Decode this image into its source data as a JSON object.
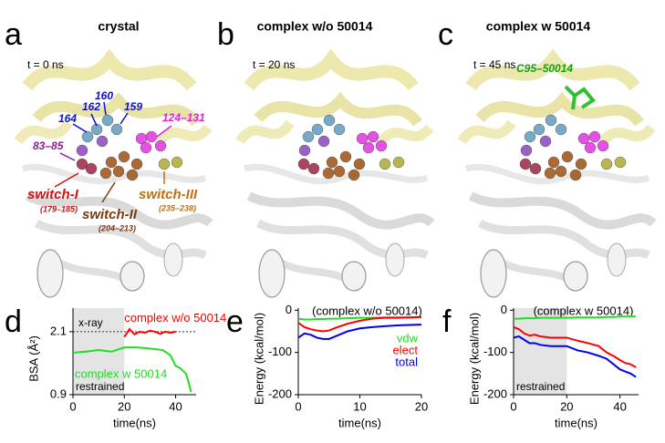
{
  "panels": [
    {
      "letter": "a",
      "title": "crystal",
      "time": "t = 0 ns",
      "labels": [
        "162",
        "160",
        "159",
        "164",
        "124–131",
        "83–85",
        "switch-I",
        "(179–185)",
        "switch-II",
        "(204–213)",
        "switch-III",
        "(235–238)"
      ]
    },
    {
      "letter": "b",
      "title": "complex w/o 50014",
      "time": "t = 20 ns",
      "labels": []
    },
    {
      "letter": "c",
      "title": "complex w 50014",
      "time": "t = 45 ns",
      "labels": [
        "C95–50014"
      ]
    }
  ],
  "chart_data": [
    {
      "type": "line",
      "letter": "d",
      "xlabel": "time(ns)",
      "ylabel": "BSA (Å²)",
      "xlim": [
        0,
        48
      ],
      "xticks": [
        0,
        20,
        40
      ],
      "ylim": [
        0.9,
        2.55
      ],
      "yticks": [
        0.9,
        2.1
      ],
      "shade": [
        0,
        20
      ],
      "shade_label": "restrained",
      "reference": 2.1,
      "reference_label": "x-ray",
      "legend": "inline",
      "series": [
        {
          "name": "complex w/o 50014",
          "color": "#ff0000",
          "x": [
            20,
            22,
            24,
            26,
            28,
            30,
            32,
            34,
            36,
            38,
            40
          ],
          "values": [
            2.0,
            2.15,
            2.05,
            2.1,
            2.08,
            2.12,
            2.1,
            2.06,
            2.1,
            2.08,
            2.1
          ]
        },
        {
          "name": "complex w 50014",
          "color": "#22dd22",
          "x": [
            0,
            5,
            10,
            15,
            20,
            25,
            30,
            35,
            38,
            40,
            42,
            44,
            45,
            46
          ],
          "values": [
            1.7,
            1.72,
            1.75,
            1.72,
            1.8,
            1.8,
            1.78,
            1.75,
            1.65,
            1.45,
            1.4,
            1.3,
            1.15,
            0.95
          ]
        }
      ]
    },
    {
      "type": "line",
      "letter": "e",
      "xlabel": "time(ns)",
      "ylabel": "Energy (kcal/mol)",
      "xlim": [
        0,
        20
      ],
      "xticks": [
        0,
        10,
        20
      ],
      "ylim": [
        -200,
        5
      ],
      "yticks": [
        -200,
        -100,
        0
      ],
      "annotation": "(complex w/o 50014)",
      "legend": "right",
      "series": [
        {
          "name": "vdw",
          "color": "#22dd22",
          "x": [
            0,
            1,
            2,
            3,
            4,
            5,
            6,
            8,
            10,
            12,
            14,
            16,
            18,
            20
          ],
          "values": [
            -20,
            -22,
            -22,
            -21,
            -21,
            -20,
            -20,
            -19,
            -18,
            -18,
            -17,
            -17,
            -17,
            -17
          ]
        },
        {
          "name": "elect",
          "color": "#ff0000",
          "x": [
            0,
            1,
            2,
            3,
            4,
            5,
            6,
            8,
            10,
            12,
            14,
            16,
            18,
            20
          ],
          "values": [
            -30,
            -40,
            -45,
            -48,
            -50,
            -48,
            -42,
            -32,
            -25,
            -20,
            -18,
            -18,
            -17,
            -16
          ]
        },
        {
          "name": "total",
          "color": "#0000ee",
          "x": [
            0,
            1,
            2,
            3,
            4,
            5,
            6,
            8,
            10,
            12,
            14,
            16,
            18,
            20
          ],
          "values": [
            -65,
            -55,
            -58,
            -65,
            -68,
            -68,
            -62,
            -50,
            -43,
            -40,
            -38,
            -36,
            -35,
            -34
          ]
        }
      ]
    },
    {
      "type": "line",
      "letter": "f",
      "xlabel": "time(ns)",
      "ylabel": "Energy (kcal/mol)",
      "xlim": [
        0,
        47
      ],
      "xticks": [
        0,
        20,
        40
      ],
      "ylim": [
        -200,
        5
      ],
      "yticks": [
        -200,
        -100,
        0
      ],
      "shade": [
        0,
        20
      ],
      "shade_label": "restrained",
      "annotation": "(complex w 50014)",
      "series": [
        {
          "color": "#22dd22",
          "x": [
            0,
            2,
            4,
            6,
            8,
            10,
            14,
            18,
            20,
            24,
            28,
            32,
            35,
            38,
            40,
            42,
            44,
            46
          ],
          "values": [
            -20,
            -20,
            -19,
            -19,
            -19,
            -18,
            -18,
            -18,
            -18,
            -17,
            -17,
            -17,
            -16,
            -16,
            -15,
            -15,
            -15,
            -15
          ]
        },
        {
          "color": "#ff0000",
          "x": [
            0,
            2,
            4,
            6,
            8,
            10,
            14,
            18,
            20,
            24,
            28,
            32,
            35,
            38,
            40,
            42,
            44,
            46
          ],
          "values": [
            -40,
            -45,
            -55,
            -60,
            -58,
            -62,
            -65,
            -65,
            -65,
            -72,
            -78,
            -85,
            -100,
            -110,
            -118,
            -125,
            -128,
            -135
          ]
        },
        {
          "color": "#0000ee",
          "x": [
            0,
            2,
            4,
            6,
            8,
            10,
            14,
            18,
            20,
            24,
            28,
            32,
            35,
            38,
            40,
            42,
            44,
            46
          ],
          "values": [
            -65,
            -62,
            -70,
            -78,
            -78,
            -82,
            -85,
            -85,
            -85,
            -95,
            -100,
            -108,
            -115,
            -130,
            -140,
            -145,
            -150,
            -158
          ]
        }
      ]
    }
  ]
}
